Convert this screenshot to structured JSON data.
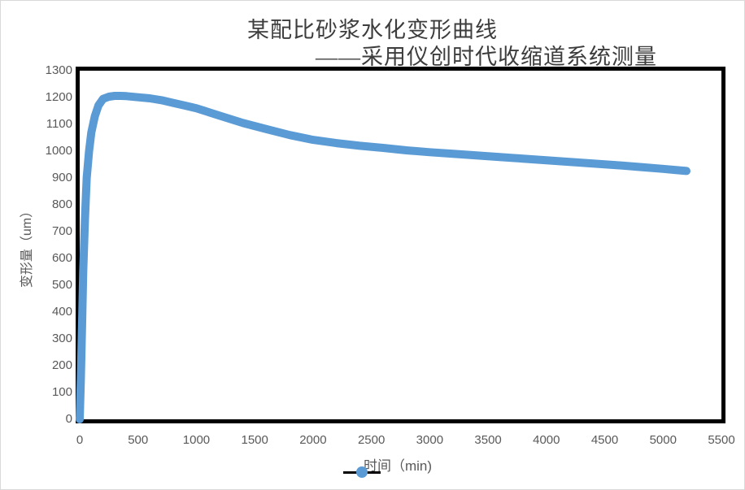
{
  "title": {
    "line1": "某配比砂浆水化变形曲线",
    "line2": "——采用仪创时代收缩道系统测量"
  },
  "y_axis": {
    "title": "变形量（um）",
    "min": 0,
    "max": 1300,
    "tick_step": 100,
    "ticks": [
      0,
      100,
      200,
      300,
      400,
      500,
      600,
      700,
      800,
      900,
      1000,
      1100,
      1200,
      1300
    ]
  },
  "x_axis": {
    "title": "时间（min)",
    "min": 0,
    "max": 5500,
    "tick_step": 500,
    "ticks": [
      0,
      500,
      1000,
      1500,
      2000,
      2500,
      3000,
      3500,
      4000,
      4500,
      5000,
      5500
    ]
  },
  "legend": {
    "symbol": "line-with-circle-marker",
    "line_color": "#000000",
    "marker_color": "#5b9bd5"
  },
  "colors": {
    "series": "#5b9bd5",
    "axis_text": "#595959",
    "title_text": "#3d3d3d",
    "plot_border": "#000000",
    "figure_border": "#d9d9d9"
  },
  "chart_data": {
    "type": "line",
    "title": "某配比砂浆水化变形曲线——采用仪创时代收缩道系统测量",
    "xlabel": "时间（min)",
    "ylabel": "变形量（um）",
    "xlim": [
      0,
      5500
    ],
    "ylim": [
      0,
      1300
    ],
    "grid": false,
    "legend_position": "bottom-center",
    "series": [
      {
        "color": "#5b9bd5",
        "line_width": 10,
        "x": [
          0,
          10,
          20,
          30,
          45,
          60,
          80,
          100,
          130,
          160,
          200,
          250,
          300,
          350,
          400,
          500,
          600,
          700,
          800,
          900,
          1000,
          1200,
          1400,
          1600,
          1800,
          2000,
          2200,
          2400,
          2600,
          2800,
          3000,
          3200,
          3400,
          3600,
          3800,
          4000,
          4200,
          4400,
          4600,
          4800,
          5000,
          5100,
          5200
        ],
        "y": [
          0,
          150,
          350,
          550,
          750,
          900,
          1000,
          1070,
          1130,
          1170,
          1195,
          1203,
          1206,
          1206,
          1205,
          1201,
          1197,
          1190,
          1180,
          1170,
          1160,
          1132,
          1105,
          1082,
          1060,
          1042,
          1030,
          1020,
          1012,
          1003,
          996,
          990,
          984,
          978,
          972,
          966,
          960,
          954,
          948,
          941,
          934,
          930,
          926
        ]
      }
    ]
  }
}
